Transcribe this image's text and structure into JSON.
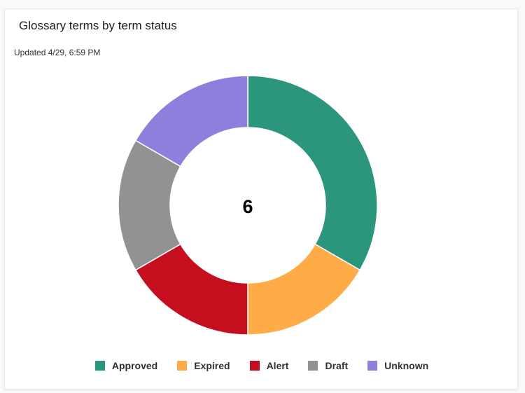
{
  "card": {
    "title": "Glossary terms by term status",
    "updated": "Updated 4/29, 6:59 PM"
  },
  "chart_data": {
    "type": "pie",
    "variant": "donut",
    "title": "Glossary terms by term status",
    "center_label": "6",
    "categories": [
      "Approved",
      "Expired",
      "Alert",
      "Draft",
      "Unknown"
    ],
    "values": [
      2,
      1,
      1,
      1,
      1
    ],
    "colors": [
      "#2c967c",
      "#ffab47",
      "#c50f1f",
      "#929292",
      "#8f7fdd"
    ],
    "legend_position": "bottom"
  }
}
